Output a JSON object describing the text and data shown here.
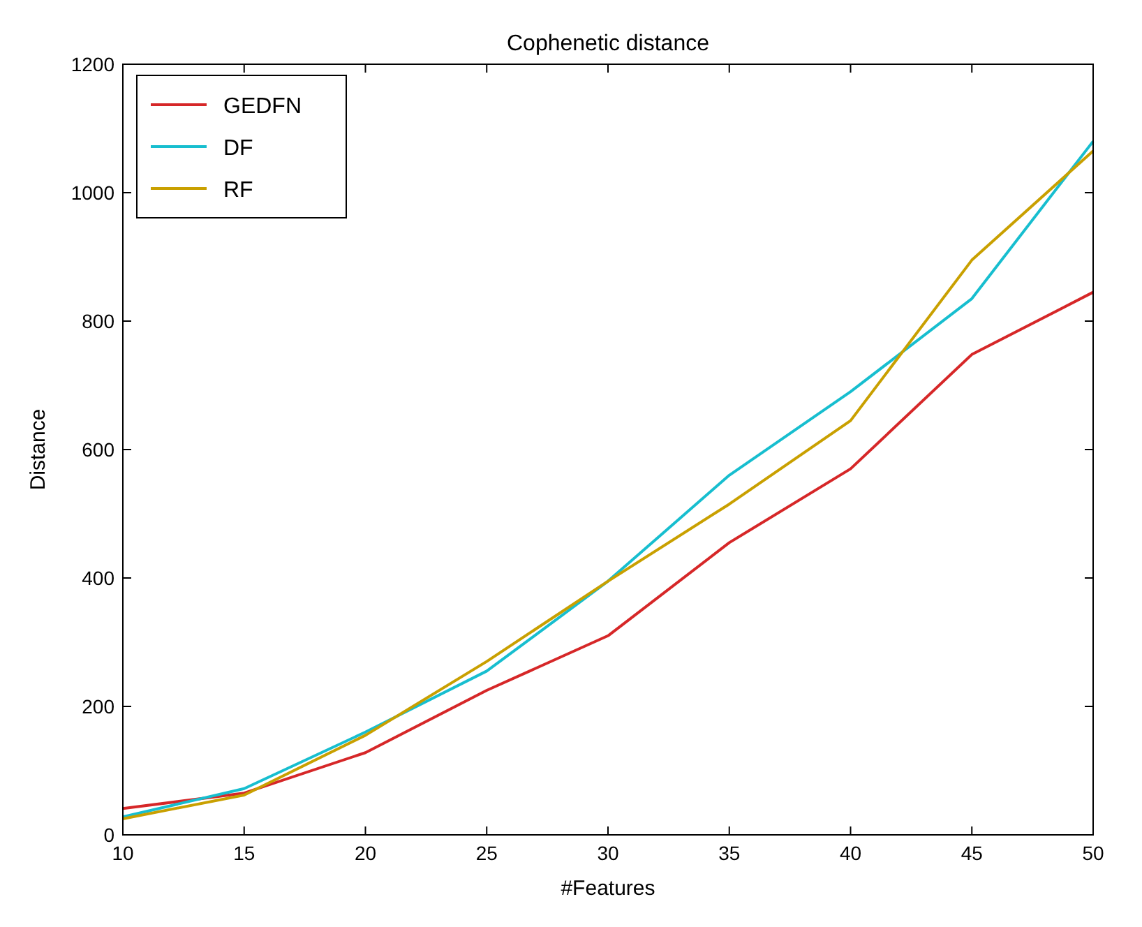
{
  "chart_data": {
    "type": "line",
    "title": "Cophenetic distance",
    "xlabel": "#Features",
    "ylabel": "Distance",
    "x": [
      10,
      15,
      20,
      25,
      30,
      35,
      40,
      45,
      50
    ],
    "series": [
      {
        "name": "GEDFN",
        "color": "#d62728",
        "values": [
          41,
          65,
          128,
          225,
          310,
          455,
          570,
          748,
          845
        ]
      },
      {
        "name": "DF",
        "color": "#17becf",
        "values": [
          28,
          72,
          160,
          255,
          395,
          560,
          690,
          835,
          1080
        ]
      },
      {
        "name": "RF",
        "color": "#c9a000",
        "values": [
          25,
          62,
          155,
          270,
          395,
          515,
          645,
          895,
          1065
        ]
      }
    ],
    "xlim": [
      10,
      50
    ],
    "xticks": [
      10,
      15,
      20,
      25,
      30,
      35,
      40,
      45,
      50
    ],
    "ylim": [
      0,
      1200
    ],
    "yticks": [
      0,
      200,
      400,
      600,
      800,
      1000,
      1200
    ],
    "grid": false,
    "legend": "top left",
    "marker": "none",
    "line_style": "solid"
  }
}
